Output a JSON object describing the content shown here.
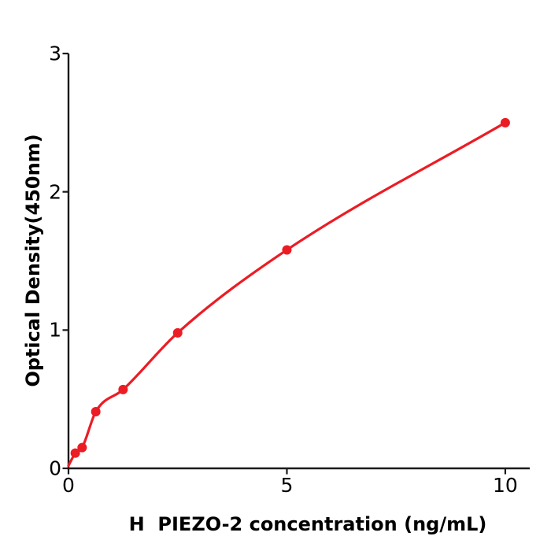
{
  "chart_data": {
    "type": "scatter",
    "title": "",
    "xlabel": "H  PIEZO-2 concentration (ng/mL)",
    "ylabel": "Optical Density(450nm)",
    "xlim": [
      0,
      10.56
    ],
    "ylim": [
      0,
      3
    ],
    "xticks": [
      0,
      5,
      10
    ],
    "yticks": [
      0,
      1,
      2,
      3
    ],
    "grid": false,
    "legend": "none",
    "marker_color": "#ec1c24",
    "line_color": "#ec1c24",
    "axis_color": "#1a1a1a",
    "background_color": "#ffffff",
    "curve_start": {
      "x": 0,
      "y": 0.02
    },
    "points": [
      {
        "x": 0.156,
        "y": 0.11
      },
      {
        "x": 0.3125,
        "y": 0.15
      },
      {
        "x": 0.625,
        "y": 0.41
      },
      {
        "x": 1.25,
        "y": 0.57
      },
      {
        "x": 2.5,
        "y": 0.98
      },
      {
        "x": 5,
        "y": 1.58
      },
      {
        "x": 10,
        "y": 2.5
      }
    ]
  }
}
